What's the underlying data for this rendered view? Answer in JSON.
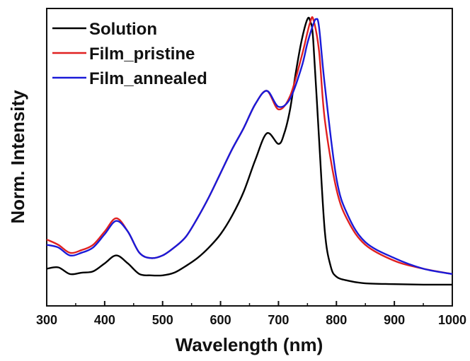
{
  "chart_data": {
    "type": "line",
    "xlabel": "Wavelength (nm)",
    "ylabel": "Norm. Intensity",
    "xlim": [
      300,
      1000
    ],
    "ylim": [
      -0.08,
      1.04
    ],
    "x_ticks": [
      300,
      400,
      500,
      600,
      700,
      800,
      900,
      1000
    ],
    "x_tick_labels": [
      "300",
      "400",
      "500",
      "600",
      "700",
      "800",
      "900",
      "1000"
    ],
    "grid": false,
    "legend_position": "top-left",
    "series": [
      {
        "name": "Solution",
        "color": "#000000",
        "x": [
          300,
          320,
          340,
          360,
          380,
          400,
          420,
          440,
          460,
          480,
          500,
          520,
          540,
          560,
          580,
          600,
          620,
          640,
          660,
          680,
          700,
          710,
          720,
          730,
          740,
          750,
          755,
          760,
          770,
          780,
          790,
          800,
          820,
          850,
          900,
          950,
          1000
        ],
        "values": [
          0.06,
          0.065,
          0.04,
          0.045,
          0.05,
          0.08,
          0.11,
          0.08,
          0.04,
          0.035,
          0.035,
          0.045,
          0.07,
          0.1,
          0.14,
          0.19,
          0.26,
          0.35,
          0.47,
          0.57,
          0.53,
          0.57,
          0.66,
          0.8,
          0.92,
          1.0,
          0.99,
          0.92,
          0.55,
          0.2,
          0.07,
          0.03,
          0.015,
          0.005,
          0.002,
          0.0,
          0.0
        ]
      },
      {
        "name": "Film_pristine",
        "color": "#e02020",
        "x": [
          300,
          320,
          340,
          360,
          380,
          400,
          420,
          440,
          460,
          480,
          500,
          520,
          540,
          560,
          580,
          600,
          620,
          640,
          660,
          680,
          700,
          720,
          740,
          750,
          755,
          760,
          770,
          780,
          800,
          820,
          850,
          900,
          950,
          1000
        ],
        "values": [
          0.17,
          0.15,
          0.12,
          0.13,
          0.15,
          0.2,
          0.25,
          0.2,
          0.12,
          0.1,
          0.11,
          0.14,
          0.18,
          0.25,
          0.33,
          0.42,
          0.51,
          0.59,
          0.68,
          0.73,
          0.66,
          0.71,
          0.86,
          0.95,
          0.99,
          1.0,
          0.88,
          0.62,
          0.36,
          0.24,
          0.15,
          0.09,
          0.06,
          0.04
        ]
      },
      {
        "name": "Film_annealed",
        "color": "#1a1ad8",
        "x": [
          300,
          320,
          340,
          360,
          380,
          400,
          420,
          440,
          460,
          480,
          500,
          520,
          540,
          560,
          580,
          600,
          620,
          640,
          660,
          680,
          700,
          720,
          740,
          750,
          760,
          765,
          770,
          780,
          800,
          820,
          850,
          900,
          950,
          1000
        ],
        "values": [
          0.15,
          0.14,
          0.11,
          0.12,
          0.14,
          0.19,
          0.24,
          0.2,
          0.12,
          0.1,
          0.11,
          0.14,
          0.18,
          0.25,
          0.33,
          0.42,
          0.51,
          0.59,
          0.68,
          0.73,
          0.67,
          0.7,
          0.82,
          0.91,
          0.98,
          1.0,
          0.97,
          0.75,
          0.4,
          0.26,
          0.16,
          0.1,
          0.06,
          0.04
        ]
      }
    ]
  }
}
